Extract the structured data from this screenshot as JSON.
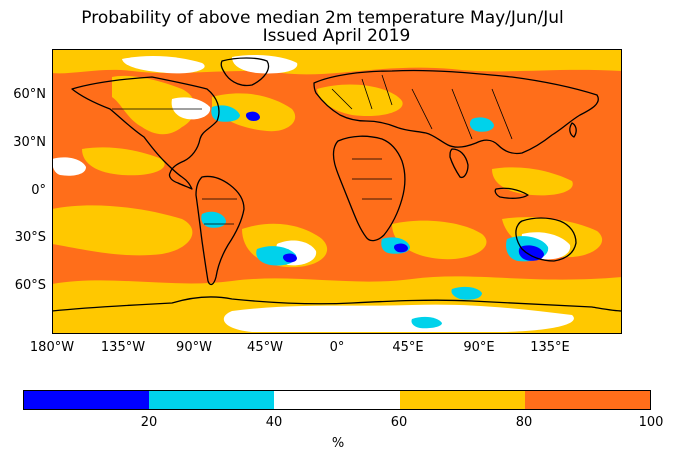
{
  "title": {
    "line1": "Probability of above median 2m temperature May/Jun/Jul",
    "line2": "Issued April 2019"
  },
  "map": {
    "projection": "Plate Carrée",
    "extent": {
      "lon": [
        -180,
        180
      ],
      "lat": [
        -90,
        90
      ]
    },
    "lat_ticks": [
      "60°N",
      "30°N",
      "0°",
      "30°S",
      "60°S"
    ],
    "lon_ticks": [
      "180°W",
      "135°W",
      "90°W",
      "45°W",
      "0°",
      "45°E",
      "90°E",
      "135°E"
    ],
    "dominant_category": "80-100",
    "coastlines": true,
    "country_borders": true
  },
  "colorbar": {
    "unit": "%",
    "bins": [
      {
        "range": "0-20",
        "color": "#0000ff"
      },
      {
        "range": "20-40",
        "color": "#00d2eb"
      },
      {
        "range": "40-60",
        "color": "#ffffff"
      },
      {
        "range": "60-80",
        "color": "#ffc800"
      },
      {
        "range": "80-100",
        "color": "#ff6e1a"
      }
    ],
    "tick_labels": [
      "20",
      "40",
      "60",
      "80",
      "100"
    ]
  }
}
